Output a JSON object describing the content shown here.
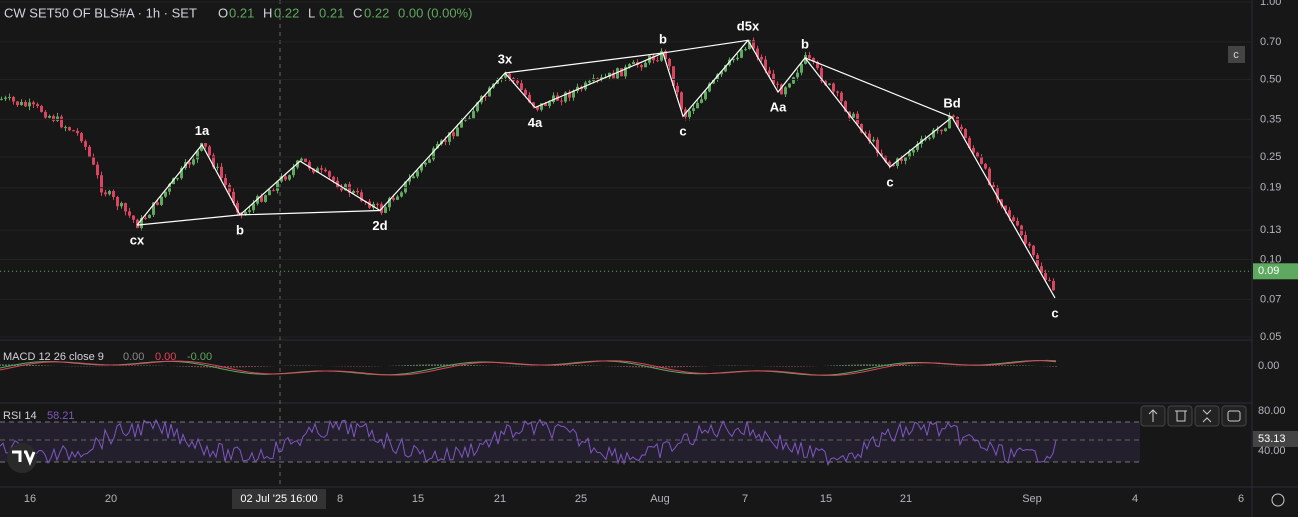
{
  "header": {
    "symbol": "CW SET50 OF BLS#A · 1h · SET",
    "ohlc": [
      {
        "key": "O",
        "value": "0.21"
      },
      {
        "key": "H",
        "value": "0.22"
      },
      {
        "key": "L",
        "value": "0.21"
      },
      {
        "key": "C",
        "value": "0.22"
      }
    ],
    "change": "0.00 (0.00%)"
  },
  "badge": "c",
  "price_axis": {
    "ticks": [
      "1.00",
      "0.70",
      "0.50",
      "0.35",
      "0.25",
      "0.19",
      "0.13",
      "0.10",
      "0.07",
      "0.05"
    ],
    "last_price": "0.09"
  },
  "waves": [
    {
      "label": "cx",
      "price": 0.136
    },
    {
      "label": "1a",
      "price": 0.279
    },
    {
      "label": "b",
      "price": 0.149
    },
    {
      "price": 0.241
    },
    {
      "label": "2d",
      "price": 0.155
    },
    {
      "label": "3x",
      "price": 0.53
    },
    {
      "label": "4a",
      "price": 0.389
    },
    {
      "label": "b",
      "price": 0.634
    },
    {
      "label": "c",
      "price": 0.36
    },
    {
      "label": "d5x",
      "price": 0.71
    },
    {
      "label": "Aa",
      "price": 0.447
    },
    {
      "label": "b",
      "price": 0.607
    },
    {
      "label": "c",
      "price": 0.229
    },
    {
      "label": "Bd",
      "price": 0.357
    },
    {
      "label": "c",
      "price": 0.0709
    }
  ],
  "macd": {
    "title": "MACD 12 26 close 9",
    "values": [
      "0.00",
      "0.00",
      "-0.00"
    ],
    "axis": [
      "0.00"
    ]
  },
  "rsi": {
    "title": "RSI 14",
    "value": "58.21",
    "axis": [
      "80.00",
      "40.00"
    ],
    "last": "53.13"
  },
  "time_axis": {
    "labels": [
      "16",
      "20",
      "8",
      "15",
      "21",
      "25",
      "Aug",
      "7",
      "15",
      "21",
      "Sep",
      "4",
      "6"
    ],
    "crosshair": "02 Jul '25  16:00"
  }
}
